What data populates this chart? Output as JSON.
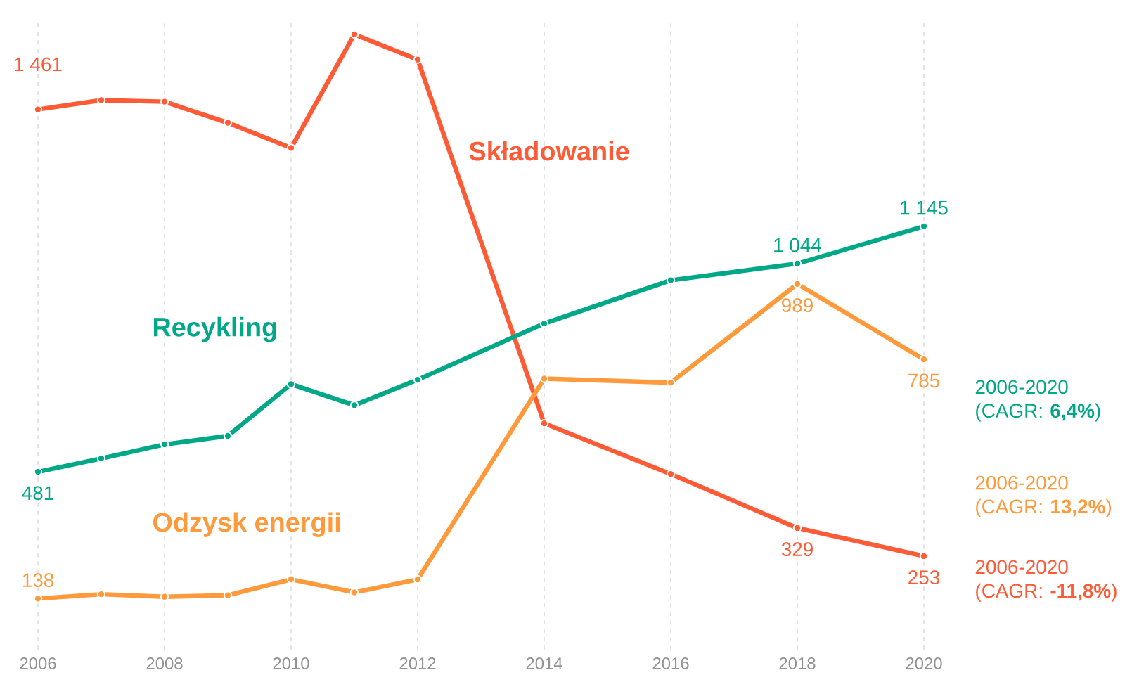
{
  "chart_data": {
    "type": "line",
    "x": [
      2006,
      2007,
      2008,
      2009,
      2010,
      2011,
      2012,
      2014,
      2016,
      2018,
      2020
    ],
    "xlim": [
      2006,
      2020
    ],
    "xticks": [
      2006,
      2008,
      2010,
      2012,
      2014,
      2016,
      2018,
      2020
    ],
    "ylim": [
      0,
      1700
    ],
    "tick_labels": "x",
    "grid": "x",
    "marker": "circle",
    "line_style": "solid",
    "series": [
      {
        "name": "Składowanie",
        "color": "#fd5a36",
        "values": [
          1461,
          1486,
          1482,
          1425,
          1357,
          1664,
          1596,
          612,
          475,
          329,
          253
        ],
        "value_labels": [
          "1 461",
          null,
          null,
          null,
          null,
          null,
          null,
          null,
          null,
          "329",
          "253"
        ]
      },
      {
        "name": "Recykling",
        "color": "#00a887",
        "values": [
          481,
          517,
          555,
          578,
          718,
          661,
          730,
          882,
          999,
          1044,
          1145
        ],
        "value_labels": [
          "481",
          null,
          null,
          null,
          null,
          null,
          null,
          null,
          null,
          "1 044",
          "1 145"
        ]
      },
      {
        "name": "Odzysk energii",
        "color": "#fe9a3c",
        "values": [
          138,
          150,
          143,
          147,
          190,
          155,
          190,
          733,
          722,
          989,
          785
        ],
        "value_labels": [
          "138",
          null,
          null,
          null,
          null,
          null,
          null,
          null,
          null,
          "989",
          "785"
        ]
      }
    ],
    "annotations": [
      "2006-2020 (CAGR: **-11,8%**)",
      "2006-2020 (CAGR: **6,4%**)",
      "2006-2020 (CAGR: **13,2%**)"
    ]
  }
}
